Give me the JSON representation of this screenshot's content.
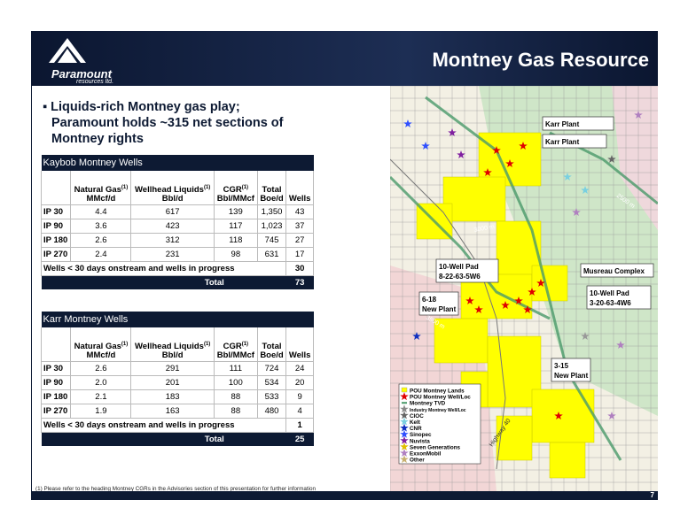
{
  "header": {
    "title": "Montney Gas Resource",
    "logo_name": "Paramount",
    "logo_sub": "resources ltd."
  },
  "bullet": "Liquids-rich Montney gas play; Paramount holds ~315 net sections of Montney rights",
  "tables": [
    {
      "title": "Kaybob Montney Wells",
      "columns": [
        {
          "label": "",
          "sup": "",
          "unit": ""
        },
        {
          "label": "Natural Gas",
          "sup": "(1)",
          "unit": "MMcf/d"
        },
        {
          "label": "Wellhead Liquids",
          "sup": "(1)",
          "unit": "Bbl/d"
        },
        {
          "label": "CGR",
          "sup": "(1)",
          "unit": "Bbl/MMcf"
        },
        {
          "label": "Total",
          "sup": "",
          "unit": "Boe/d"
        },
        {
          "label": "Wells",
          "sup": "",
          "unit": ""
        }
      ],
      "rows": [
        [
          "IP 30",
          "4.4",
          "617",
          "139",
          "1,350",
          "43"
        ],
        [
          "IP 90",
          "3.6",
          "423",
          "117",
          "1,023",
          "37"
        ],
        [
          "IP 180",
          "2.6",
          "312",
          "118",
          "745",
          "27"
        ],
        [
          "IP 270",
          "2.4",
          "231",
          "98",
          "631",
          "17"
        ]
      ],
      "note_row": [
        "Wells < 30 days onstream and wells in progress",
        "30"
      ],
      "total_row": [
        "Total",
        "73"
      ]
    },
    {
      "title": "Karr Montney Wells",
      "columns": [
        {
          "label": "",
          "sup": "",
          "unit": ""
        },
        {
          "label": "Natural Gas",
          "sup": "(1)",
          "unit": "MMcf/d"
        },
        {
          "label": "Wellhead Liquids",
          "sup": "(1)",
          "unit": "Bbl/d"
        },
        {
          "label": "CGR",
          "sup": "(1)",
          "unit": "Bbl/MMcf"
        },
        {
          "label": "Total",
          "sup": "",
          "unit": "Boe/d"
        },
        {
          "label": "Wells",
          "sup": "",
          "unit": ""
        }
      ],
      "rows": [
        [
          "IP 30",
          "2.6",
          "291",
          "111",
          "724",
          "24"
        ],
        [
          "IP 90",
          "2.0",
          "201",
          "100",
          "534",
          "20"
        ],
        [
          "IP 180",
          "2.1",
          "183",
          "88",
          "533",
          "9"
        ],
        [
          "IP 270",
          "1.9",
          "163",
          "88",
          "480",
          "4"
        ]
      ],
      "note_row": [
        "Wells < 30 days onstream and wells in progress",
        "1"
      ],
      "total_row": [
        "Total",
        "25"
      ]
    }
  ],
  "map": {
    "callouts": [
      {
        "lines": [
          "Karr Plant"
        ]
      },
      {
        "lines": [
          "Karr Plant"
        ]
      },
      {
        "lines": [
          "10-Well Pad",
          "8-22-63-5W6"
        ]
      },
      {
        "lines": [
          "Musreau Complex"
        ]
      },
      {
        "lines": [
          "6-18",
          "New Plant"
        ]
      },
      {
        "lines": [
          "10-Well Pad",
          "3-20-63-4W6"
        ]
      },
      {
        "lines": [
          "3-15",
          "New Plant"
        ]
      }
    ],
    "contours": [
      "3000 m",
      "2500 m",
      "3500 m"
    ],
    "highway": "Highway 40",
    "legend": [
      "POU Montney Lands",
      "POU Montney Well/Loc",
      "Montney TVD",
      "Industry Montney Well/Loc",
      "CIOC",
      "Kelt",
      "CNR",
      "Sinopec",
      "Nuvista",
      "Seven Generations",
      "ExxonMobil",
      "Other"
    ]
  },
  "footnote": "(1) Please refer to the heading Montney CGRs in the Advisories section of this presentation for further information",
  "page_number": "7"
}
